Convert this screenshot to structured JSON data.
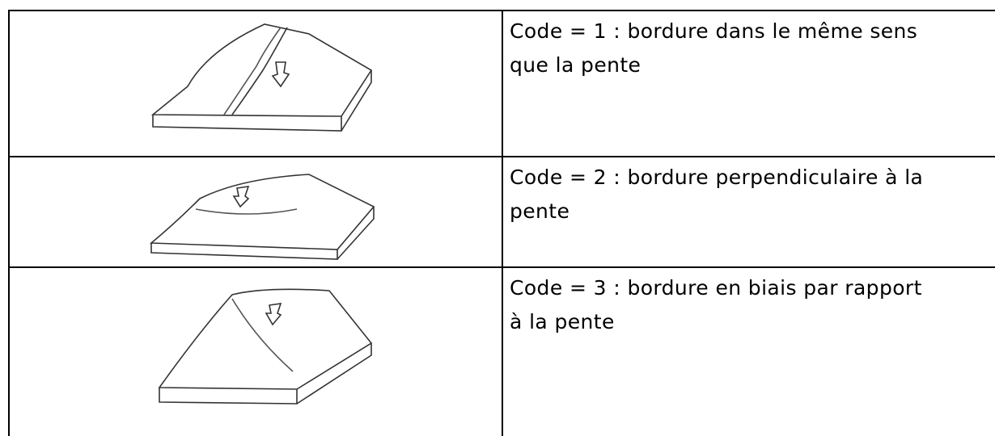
{
  "table": {
    "rows": [
      {
        "lines": [
          "Code = 1 : bordure dans le même sens",
          "que la pente"
        ]
      },
      {
        "lines": [
          "Code = 2 : bordure perpendiculaire à la",
          "pente"
        ]
      },
      {
        "lines": [
          "Code = 3 : bordure en biais par rapport",
          "à la pente"
        ]
      }
    ]
  }
}
